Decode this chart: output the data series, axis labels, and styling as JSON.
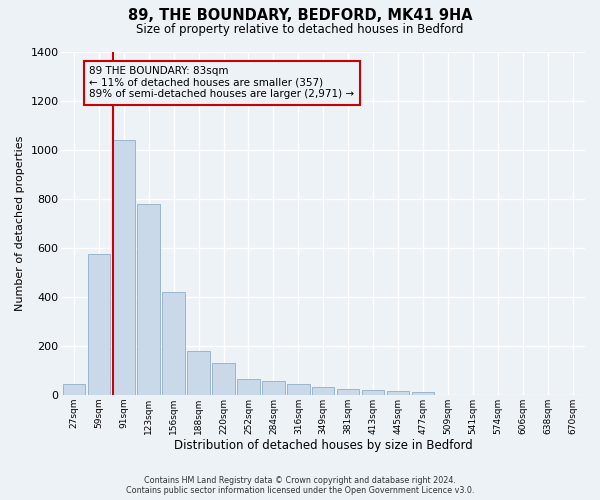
{
  "title": "89, THE BOUNDARY, BEDFORD, MK41 9HA",
  "subtitle": "Size of property relative to detached houses in Bedford",
  "xlabel": "Distribution of detached houses by size in Bedford",
  "ylabel": "Number of detached properties",
  "bar_values": [
    45,
    575,
    1040,
    780,
    420,
    180,
    130,
    65,
    55,
    45,
    30,
    25,
    20,
    15,
    10,
    0,
    0,
    0,
    0,
    0,
    0
  ],
  "bar_labels": [
    "27sqm",
    "59sqm",
    "91sqm",
    "123sqm",
    "156sqm",
    "188sqm",
    "220sqm",
    "252sqm",
    "284sqm",
    "316sqm",
    "349sqm",
    "381sqm",
    "413sqm",
    "445sqm",
    "477sqm",
    "509sqm",
    "541sqm",
    "574sqm",
    "606sqm",
    "638sqm",
    "670sqm"
  ],
  "bar_color": "#c9d9ea",
  "bar_edge_color": "#8fafc8",
  "annotation_text_line1": "89 THE BOUNDARY: 83sqm",
  "annotation_text_line2": "← 11% of detached houses are smaller (357)",
  "annotation_text_line3": "89% of semi-detached houses are larger (2,971) →",
  "vline_color": "#cc0000",
  "ylim": [
    0,
    1400
  ],
  "yticks": [
    0,
    200,
    400,
    600,
    800,
    1000,
    1200,
    1400
  ],
  "bg_color": "#edf2f7",
  "grid_color": "#ffffff",
  "footer_line1": "Contains HM Land Registry data © Crown copyright and database right 2024.",
  "footer_line2": "Contains public sector information licensed under the Open Government Licence v3.0."
}
